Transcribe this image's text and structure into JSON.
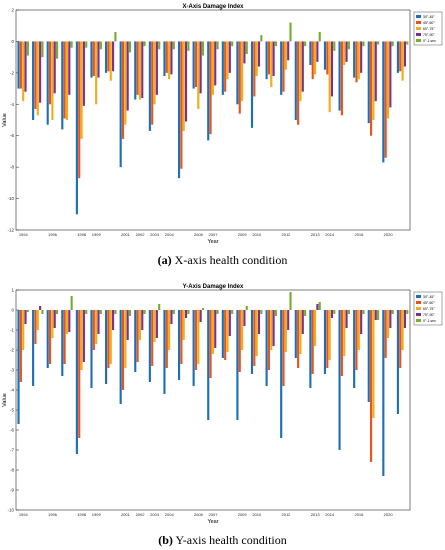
{
  "chart_data": [
    {
      "type": "bar",
      "title": "X-Axis Damage Index",
      "xlabel": "Year",
      "ylabel": "Value",
      "ylim": [
        -12,
        2
      ],
      "yticks": [
        2,
        0,
        -2,
        -4,
        -6,
        -8,
        -10,
        -12
      ],
      "grid": false,
      "legend_position": "top-right",
      "categories": [
        "1994",
        "1995",
        "1996",
        "1997",
        "1998",
        "1999",
        "2000",
        "2001",
        "2002",
        "2003",
        "2004",
        "2005",
        "2006",
        "2007",
        "2008",
        "2009",
        "2010",
        "2011",
        "2012",
        "2013",
        "2014",
        "2015",
        "2016",
        "2017",
        "2018",
        "2019",
        "2020"
      ],
      "tick_labels": [
        "1994",
        "",
        "1996",
        "",
        "1998",
        "1999",
        "",
        "2001",
        "2002",
        "2003",
        "2004",
        "",
        "2006",
        "2007",
        "",
        "2009",
        "2010",
        "",
        "2012",
        "",
        "2013",
        "2014",
        "",
        "2016",
        "",
        "2020",
        ""
      ],
      "caption_label": "(a)",
      "caption_text": "X-axis health condition",
      "series": [
        {
          "name": "30°-45°",
          "color": "#1f6fb4",
          "values": [
            -3.0,
            -5.0,
            -5.3,
            -5.6,
            -11.0,
            -2.3,
            -2.0,
            -8.0,
            -3.7,
            -5.7,
            -2.2,
            -8.7,
            -3.0,
            -6.3,
            -3.4,
            -4.0,
            -5.5,
            -2.4,
            -3.4,
            -5.0,
            -1.5,
            -1.8,
            -4.4,
            -2.3,
            -5.2,
            -7.7,
            -2.0
          ]
        },
        {
          "name": "45°-60°",
          "color": "#e8541c",
          "values": [
            -3.0,
            -4.3,
            -4.0,
            -4.9,
            -8.7,
            -2.2,
            -1.9,
            -6.2,
            -3.4,
            -5.3,
            -2.0,
            -8.1,
            -2.9,
            -5.9,
            -3.2,
            -4.6,
            -3.5,
            -2.1,
            -3.2,
            -5.3,
            -2.4,
            -2.1,
            -4.7,
            -2.6,
            -6.0,
            -7.4,
            -1.9
          ]
        },
        {
          "name": "60°-75°",
          "color": "#f0ad17",
          "values": [
            -3.8,
            -4.7,
            -5.0,
            -5.0,
            -6.2,
            -4.0,
            -2.5,
            -5.3,
            -3.7,
            -4.0,
            -2.4,
            -5.7,
            -4.3,
            -3.4,
            -2.4,
            -3.8,
            -2.2,
            -2.9,
            -1.8,
            -3.8,
            -2.1,
            -4.5,
            -1.5,
            -2.4,
            -5.0,
            -4.9,
            -2.5
          ]
        },
        {
          "name": "75°-90°",
          "color": "#7e2f8e",
          "values": [
            -3.2,
            -3.9,
            -3.3,
            -3.4,
            -4.1,
            -2.3,
            -1.9,
            -4.4,
            -3.6,
            -3.4,
            -2.1,
            -5.1,
            -3.3,
            -2.8,
            -2.0,
            -1.4,
            -1.6,
            -2.2,
            -1.2,
            -3.2,
            -1.3,
            -3.5,
            -1.3,
            -2.0,
            -3.8,
            -4.2,
            -1.6
          ]
        },
        {
          "name": "0°-1 sec",
          "color": "#77ac30",
          "values": [
            -0.9,
            -1.0,
            -1.1,
            -0.4,
            -0.4,
            -0.5,
            0.6,
            -0.7,
            -0.3,
            -0.5,
            -0.5,
            -0.6,
            -0.9,
            -0.5,
            -0.3,
            -0.8,
            0.4,
            -0.3,
            1.2,
            -0.3,
            0.6,
            -0.6,
            -0.5,
            -0.3,
            -0.2,
            -0.3,
            -0.2
          ]
        }
      ]
    },
    {
      "type": "bar",
      "title": "Y-Axis Damage Index",
      "xlabel": "Year",
      "ylabel": "Value",
      "ylim": [
        -10,
        1
      ],
      "yticks": [
        1,
        0,
        -1,
        -2,
        -3,
        -4,
        -5,
        -6,
        -7,
        -8,
        -9,
        -10
      ],
      "grid": false,
      "legend_position": "top-right",
      "categories": [
        "1994",
        "1995",
        "1996",
        "1997",
        "1998",
        "1999",
        "2000",
        "2001",
        "2002",
        "2003",
        "2004",
        "2005",
        "2006",
        "2007",
        "2008",
        "2009",
        "2010",
        "2011",
        "2012",
        "2013",
        "2014",
        "2015",
        "2016",
        "2017",
        "2018",
        "2019",
        "2020"
      ],
      "tick_labels": [
        "1994",
        "",
        "1996",
        "",
        "1998",
        "1999",
        "",
        "2001",
        "2002",
        "2003",
        "2004",
        "",
        "2006",
        "2007",
        "",
        "2009",
        "2010",
        "",
        "2012",
        "",
        "2013",
        "2014",
        "",
        "2016",
        "",
        "2020",
        ""
      ],
      "caption_label": "(b)",
      "caption_text": "Y-axis health condition",
      "series": [
        {
          "name": "30°-45°",
          "color": "#1f6fb4",
          "values": [
            -5.7,
            -3.8,
            -2.9,
            -3.3,
            -7.2,
            -3.9,
            -3.7,
            -4.7,
            -3.1,
            -3.6,
            -4.2,
            -3.5,
            -3.8,
            -5.5,
            -2.4,
            -5.5,
            -3.2,
            -3.8,
            -6.4,
            -2.4,
            -3.9,
            -3.2,
            -7.0,
            -3.9,
            -4.6,
            -8.3,
            -5.2
          ]
        },
        {
          "name": "45°-60°",
          "color": "#e8541c",
          "values": [
            -3.6,
            -1.7,
            -2.7,
            -2.7,
            -6.4,
            -2.0,
            -2.9,
            -4.0,
            -2.6,
            -2.8,
            -2.9,
            -2.7,
            -3.0,
            -3.4,
            -2.5,
            -3.1,
            -2.8,
            -3.0,
            -3.8,
            -2.9,
            -3.2,
            -2.9,
            -3.3,
            -3.0,
            -7.6,
            -2.4,
            -2.9
          ]
        },
        {
          "name": "60°-75°",
          "color": "#f0ad17",
          "values": [
            -2.0,
            -1.0,
            -1.4,
            -1.2,
            -3.0,
            -1.7,
            -2.7,
            -2.9,
            -1.5,
            -1.6,
            -2.0,
            -1.5,
            -2.7,
            -2.2,
            -2.1,
            -2.0,
            -2.3,
            -2.0,
            -2.1,
            -2.2,
            -1.8,
            -2.5,
            -2.3,
            -2.0,
            -5.4,
            -1.4,
            -2.0
          ]
        },
        {
          "name": "75°-90°",
          "color": "#7e2f8e",
          "values": [
            -0.7,
            0.2,
            -0.9,
            -1.1,
            -2.6,
            -1.2,
            -1.0,
            -1.5,
            -1.0,
            -1.4,
            -0.7,
            -0.4,
            -0.6,
            -1.9,
            -1.3,
            -0.8,
            -1.2,
            -1.8,
            -1.0,
            -1.2,
            0.3,
            -0.4,
            -0.9,
            -1.2,
            -0.5,
            -0.9,
            -0.9
          ]
        },
        {
          "name": "0°-1 sec",
          "color": "#77ac30",
          "values": [
            -0.1,
            -0.2,
            -0.2,
            0.7,
            -0.2,
            -0.2,
            -0.2,
            -0.3,
            -0.2,
            0.3,
            -0.2,
            -0.2,
            0.1,
            -0.2,
            -0.2,
            0.2,
            -0.2,
            -0.3,
            0.9,
            -0.3,
            0.4,
            -0.2,
            -0.2,
            -0.2,
            -0.5,
            -0.2,
            -0.2
          ]
        }
      ]
    }
  ]
}
